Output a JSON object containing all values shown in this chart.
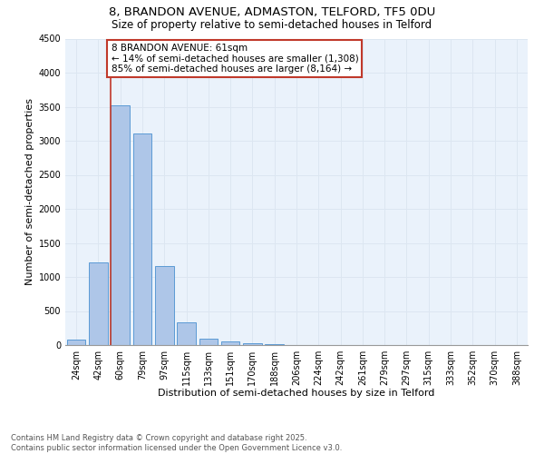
{
  "title_line1": "8, BRANDON AVENUE, ADMASTON, TELFORD, TF5 0DU",
  "title_line2": "Size of property relative to semi-detached houses in Telford",
  "categories": [
    "24sqm",
    "42sqm",
    "60sqm",
    "79sqm",
    "97sqm",
    "115sqm",
    "133sqm",
    "151sqm",
    "170sqm",
    "188sqm",
    "206sqm",
    "224sqm",
    "242sqm",
    "261sqm",
    "279sqm",
    "297sqm",
    "315sqm",
    "333sqm",
    "352sqm",
    "370sqm",
    "388sqm"
  ],
  "values": [
    80,
    1220,
    3520,
    3110,
    1160,
    340,
    100,
    50,
    30,
    10,
    5,
    3,
    2,
    1,
    0,
    0,
    0,
    0,
    0,
    0,
    0
  ],
  "bar_color": "#aec6e8",
  "bar_edge_color": "#5b9bd5",
  "highlight_index": 2,
  "highlight_line_color": "#c0392b",
  "annotation_text": "8 BRANDON AVENUE: 61sqm\n← 14% of semi-detached houses are smaller (1,308)\n85% of semi-detached houses are larger (8,164) →",
  "annotation_box_color": "#c0392b",
  "xlabel": "Distribution of semi-detached houses by size in Telford",
  "ylabel": "Number of semi-detached properties",
  "ylim": [
    0,
    4500
  ],
  "yticks": [
    0,
    500,
    1000,
    1500,
    2000,
    2500,
    3000,
    3500,
    4000,
    4500
  ],
  "grid_color": "#dce6f1",
  "bg_color": "#eaf2fb",
  "footer": "Contains HM Land Registry data © Crown copyright and database right 2025.\nContains public sector information licensed under the Open Government Licence v3.0.",
  "title_fontsize": 9.5,
  "subtitle_fontsize": 8.5,
  "axis_label_fontsize": 8,
  "tick_fontsize": 7,
  "annotation_fontsize": 7.5,
  "footer_fontsize": 6
}
